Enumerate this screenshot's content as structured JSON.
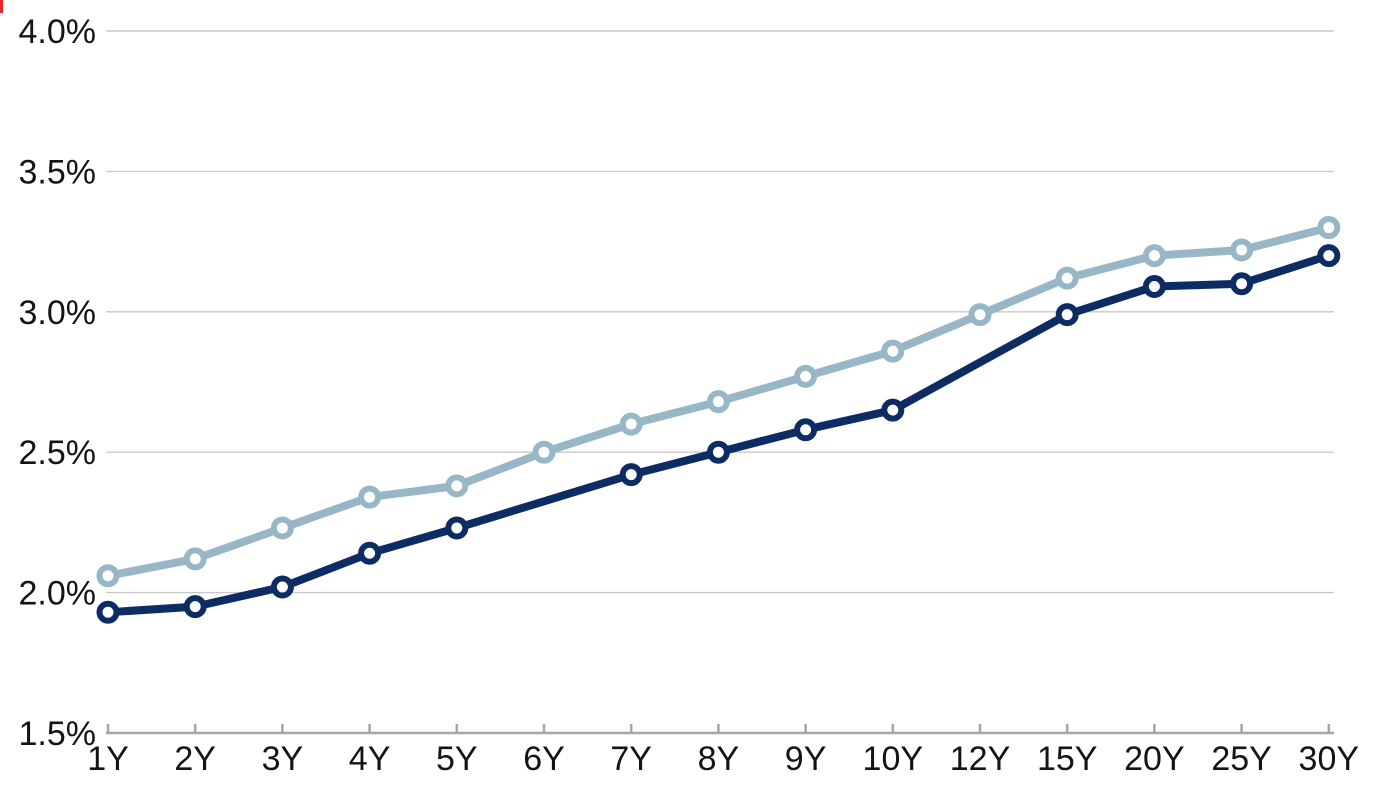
{
  "chart_data": {
    "type": "line",
    "categories": [
      "1Y",
      "2Y",
      "3Y",
      "4Y",
      "5Y",
      "6Y",
      "7Y",
      "8Y",
      "9Y",
      "10Y",
      "12Y",
      "15Y",
      "20Y",
      "25Y",
      "30Y"
    ],
    "series": [
      {
        "id": "upper-light-blue-curve",
        "color": "#97B7C7",
        "marker": "open-circle",
        "values": [
          2.06,
          2.12,
          2.23,
          2.34,
          2.38,
          2.5,
          2.6,
          2.68,
          2.77,
          2.86,
          2.99,
          3.12,
          3.2,
          3.22,
          3.3
        ]
      },
      {
        "id": "lower-navy-curve",
        "color": "#0E2C64",
        "marker": "open-circle",
        "values": [
          1.93,
          1.95,
          2.02,
          2.14,
          2.23,
          null,
          2.42,
          2.5,
          2.58,
          2.65,
          null,
          2.99,
          3.09,
          3.1,
          3.2
        ]
      }
    ],
    "title": "",
    "xlabel": "",
    "ylabel": "",
    "ylim": [
      1.5,
      4.0
    ],
    "y_ticks": [
      {
        "value": 4.0,
        "label": "4.0%"
      },
      {
        "value": 3.5,
        "label": "3.5%"
      },
      {
        "value": 3.0,
        "label": "3.0%"
      },
      {
        "value": 2.5,
        "label": "2.5%"
      },
      {
        "value": 2.0,
        "label": "2.0%"
      },
      {
        "value": 1.5,
        "label": "1.5%"
      }
    ],
    "grid": "horizontal",
    "legend": "none",
    "styles": {
      "background": "#FFFFFF",
      "gridline_color": "#C9C9C9",
      "axis_color": "#A6A6A6",
      "label_color": "#141414",
      "marker_fill": "#FFFFFF"
    }
  },
  "artifacts": {
    "corner_mark_color": "#E8262A"
  }
}
